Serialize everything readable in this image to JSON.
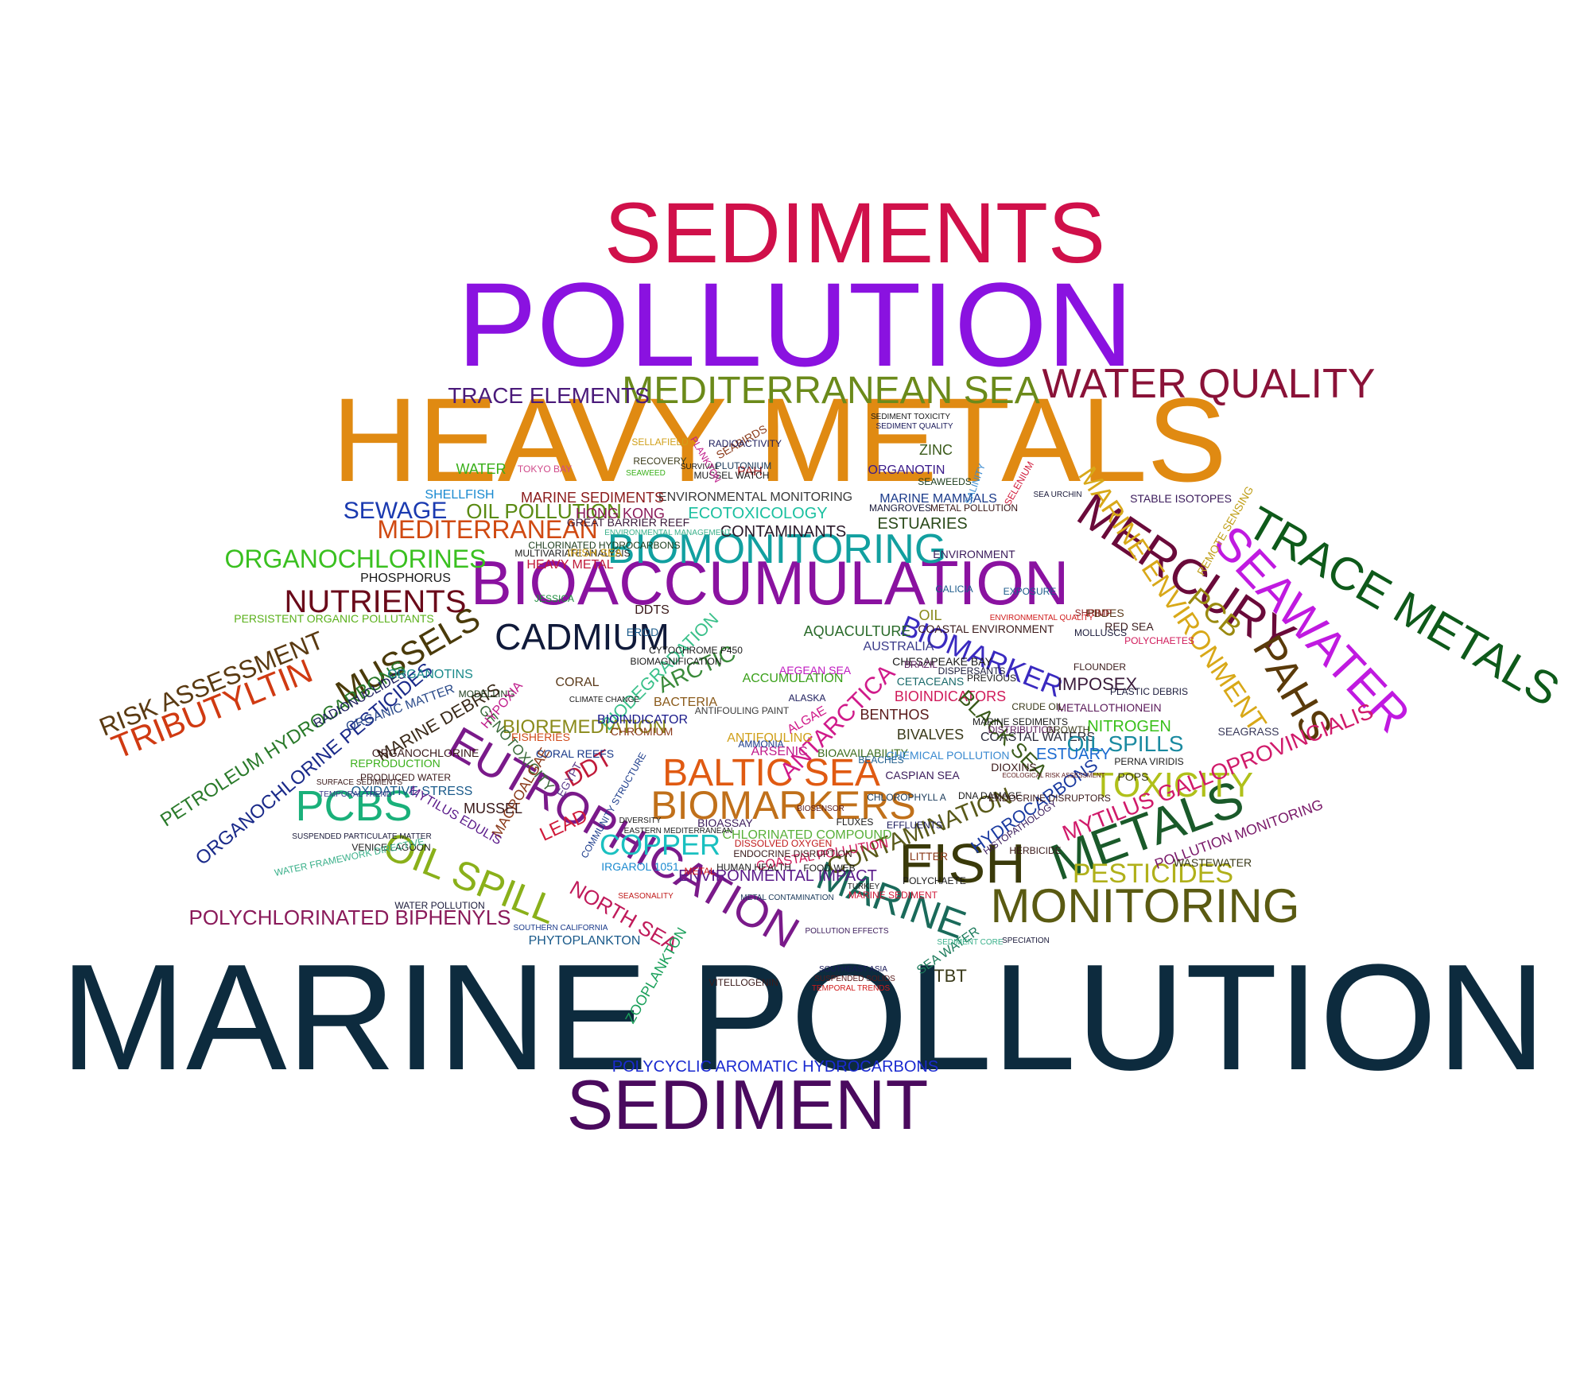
{
  "word_cloud": {
    "words": [
      {
        "text": "SEDIMENTS",
        "color": "#d0104a"
      },
      {
        "text": "POLLUTION",
        "color": "#8a12e0"
      },
      {
        "text": "HEAVY METALS",
        "color": "#e08a12"
      },
      {
        "text": "MARINE POLLUTION",
        "color": "#0d2b3e"
      },
      {
        "text": "SEDIMENT",
        "color": "#4a0a5e"
      },
      {
        "text": "MEDITERRANEAN SEA",
        "color": "#6b8a1a"
      },
      {
        "text": "WATER QUALITY",
        "color": "#8a1238"
      },
      {
        "text": "TRACE ELEMENTS",
        "color": "#4a1a7a"
      },
      {
        "text": "TRACE METALS",
        "color": "#0e5a1a"
      },
      {
        "text": "SEAWATER",
        "color": "#c01ae0"
      },
      {
        "text": "MERCURY",
        "color": "#6a0a3a"
      },
      {
        "text": "MARINE ENVIRONMENT",
        "color": "#d8a818"
      },
      {
        "text": "PAHS",
        "color": "#5a3a0a"
      },
      {
        "text": "PCB",
        "color": "#9a8a10"
      },
      {
        "text": "BIOACCUMULATION",
        "color": "#8a12a0"
      },
      {
        "text": "BIOMONITORING",
        "color": "#12a0a0"
      },
      {
        "text": "CADMIUM",
        "color": "#101a3a"
      },
      {
        "text": "MUSSELS",
        "color": "#4a3a0a"
      },
      {
        "text": "NUTRIENTS",
        "color": "#6a0a1a"
      },
      {
        "text": "ORGANOCHLORINES",
        "color": "#3ac020"
      },
      {
        "text": "MEDITERRANEAN",
        "color": "#d04a12"
      },
      {
        "text": "SEWAGE",
        "color": "#1a3ab0"
      },
      {
        "text": "OIL POLLUTION",
        "color": "#5a8a12"
      },
      {
        "text": "RISK ASSESSMENT",
        "color": "#5a3a12"
      },
      {
        "text": "TRIBUTYLTIN",
        "color": "#d03a12"
      },
      {
        "text": "PETROLEUM HYDROCARBONS",
        "color": "#2a7a2a"
      },
      {
        "text": "ORGANOCHLORINE PESTICIDES",
        "color": "#1a2a8a"
      },
      {
        "text": "PCBS",
        "color": "#1ab07a"
      },
      {
        "text": "EUTROPHICATION",
        "color": "#7a1a8a"
      },
      {
        "text": "OIL SPILL",
        "color": "#8ab01a"
      },
      {
        "text": "POLYCHLORINATED BIPHENYLS",
        "color": "#8a1a5a"
      },
      {
        "text": "BALTIC SEA",
        "color": "#e05a12"
      },
      {
        "text": "BIOMARKERS",
        "color": "#c0701a"
      },
      {
        "text": "COPPER",
        "color": "#1ac0c0"
      },
      {
        "text": "FISH",
        "color": "#3a3a0a"
      },
      {
        "text": "METALS",
        "color": "#1a5a2a"
      },
      {
        "text": "TOXICITY",
        "color": "#b0c01a"
      },
      {
        "text": "MONITORING",
        "color": "#5a5a12"
      },
      {
        "text": "MARINE",
        "color": "#1a6a5a"
      },
      {
        "text": "PESTICIDES",
        "color": "#b0b01a"
      },
      {
        "text": "MYTILUS GALLOPROVINCIALIS",
        "color": "#d01a6a"
      },
      {
        "text": "BIOMARKER",
        "color": "#3a2ac0"
      },
      {
        "text": "CONTAMINATION",
        "color": "#5a5a1a"
      },
      {
        "text": "ANTARCTICA",
        "color": "#d01a8a"
      },
      {
        "text": "ENVIRONMENTAL MONITORING",
        "color": "#3a3a3a"
      },
      {
        "text": "MARINE SEDIMENTS",
        "color": "#8a1a1a"
      },
      {
        "text": "HONG KONG",
        "color": "#8a1a5a"
      },
      {
        "text": "ECOTOXICOLOGY",
        "color": "#1ac0a0"
      },
      {
        "text": "CONTAMINANTS",
        "color": "#2a1a2a"
      },
      {
        "text": "ESTUARIES",
        "color": "#2a4a1a"
      },
      {
        "text": "SHELLFISH",
        "color": "#1a8ad0"
      },
      {
        "text": "WATER",
        "color": "#3ab01a"
      },
      {
        "text": "ZINC",
        "color": "#3a5a1a"
      },
      {
        "text": "ORGANOTIN",
        "color": "#3a1a8a"
      },
      {
        "text": "MARINE MAMMALS",
        "color": "#1a3a8a"
      },
      {
        "text": "STABLE ISOTOPES",
        "color": "#3a1a5a"
      },
      {
        "text": "AQUACULTURE",
        "color": "#2a6a2a"
      },
      {
        "text": "AUSTRALIA",
        "color": "#3a3a8a"
      },
      {
        "text": "IMPOSEX",
        "color": "#3a1a3a"
      },
      {
        "text": "METALLOTHIONEIN",
        "color": "#5a1a5a"
      },
      {
        "text": "BIOINDICATORS",
        "color": "#d01a5a"
      },
      {
        "text": "BENTHOS",
        "color": "#5a1a1a"
      },
      {
        "text": "BIVALVES",
        "color": "#3a3a1a"
      },
      {
        "text": "COASTAL WATERS",
        "color": "#2a2a3a"
      },
      {
        "text": "NITROGEN",
        "color": "#3ac01a"
      },
      {
        "text": "OIL SPILLS",
        "color": "#1a8aa0"
      },
      {
        "text": "ESTUARY",
        "color": "#1a6ad0"
      },
      {
        "text": "BLACK SEA",
        "color": "#3a5a1a"
      },
      {
        "text": "HYDROCARBONS",
        "color": "#1a3aa0"
      },
      {
        "text": "POLLUTION MONITORING",
        "color": "#7a1a6a"
      },
      {
        "text": "DDT",
        "color": "#c01a3a"
      },
      {
        "text": "LEAD",
        "color": "#d01a3a"
      },
      {
        "text": "BIODEGRADATION",
        "color": "#3ac08a"
      },
      {
        "text": "ARCTIC",
        "color": "#3a8a3a"
      },
      {
        "text": "BIOREMEDIATION",
        "color": "#8a8a1a"
      },
      {
        "text": "ENVIRONMENTAL IMPACT",
        "color": "#5a1a8a"
      },
      {
        "text": "NORTH SEA",
        "color": "#c01a5a"
      },
      {
        "text": "PHYTOPLANKTON",
        "color": "#1a5a8a"
      },
      {
        "text": "ZOOPLANKTON",
        "color": "#1aa05a"
      },
      {
        "text": "POLYCYCLIC AROMATIC HYDROCARBONS",
        "color": "#1a2ad0"
      },
      {
        "text": "TBT",
        "color": "#3a3a1a"
      },
      {
        "text": "SEA WATER",
        "color": "#1a7a5a"
      },
      {
        "text": "GENOTOXICITY",
        "color": "#3a6a3a"
      },
      {
        "text": "MACROALGAE",
        "color": "#8a3a1a"
      },
      {
        "text": "MUSSEL",
        "color": "#3a1a1a"
      },
      {
        "text": "OXIDATIVE STRESS",
        "color": "#1a5a8a"
      },
      {
        "text": "MYTILUS EDULIS",
        "color": "#5a1a8a"
      },
      {
        "text": "MARINE DEBRIS",
        "color": "#3a2a1a"
      },
      {
        "text": "RADIONUCLIDES",
        "color": "#1a1a5a"
      },
      {
        "text": "ORGANOTINS",
        "color": "#1a8a8a"
      },
      {
        "text": "ORGANIC MATTER",
        "color": "#2a4a8a"
      },
      {
        "text": "PHOSPHORUS",
        "color": "#1a1a1a"
      },
      {
        "text": "PERSISTENT ORGANIC POLLUTANTS",
        "color": "#5ab01a"
      },
      {
        "text": "HEAVY METAL",
        "color": "#c01a3a"
      },
      {
        "text": "GREAT BARRIER REEF",
        "color": "#3a1a3a"
      },
      {
        "text": "SEABIRDS",
        "color": "#8a3a1a"
      },
      {
        "text": "PAH",
        "color": "#a01a1a"
      },
      {
        "text": "RED SEA",
        "color": "#3a1a1a"
      },
      {
        "text": "PBDES",
        "color": "#5a3a1a"
      },
      {
        "text": "CRUDE OIL",
        "color": "#3a3a1a"
      },
      {
        "text": "POPS",
        "color": "#3a3a1a"
      },
      {
        "text": "SEAGRASS",
        "color": "#3a3a5a"
      },
      {
        "text": "WASTEWATER",
        "color": "#3a3a1a"
      },
      {
        "text": "CHLORINATED COMPOUND",
        "color": "#5ab03a"
      },
      {
        "text": "COASTAL POLLUTION",
        "color": "#d01a5a"
      },
      {
        "text": "IRGAROL 1051",
        "color": "#1a8ad0"
      },
      {
        "text": "CORAL REEFS",
        "color": "#1a3a8a"
      },
      {
        "text": "BACTERIA",
        "color": "#8a5a1a"
      },
      {
        "text": "BIOINDICATOR",
        "color": "#1a1a8a"
      },
      {
        "text": "ACCUMULATION",
        "color": "#3aa01a"
      },
      {
        "text": "ARSENIC",
        "color": "#c01a8a"
      },
      {
        "text": "ANTIFOULING",
        "color": "#d0a01a"
      },
      {
        "text": "BIOAVAILABILITY",
        "color": "#3a6a1a"
      },
      {
        "text": "CHEMICAL POLLUTION",
        "color": "#3a8ad0"
      },
      {
        "text": "CETACEANS",
        "color": "#1a6a6a"
      },
      {
        "text": "DIOXINS",
        "color": "#3a1a1a"
      },
      {
        "text": "MODELLING",
        "color": "#1a3a1a"
      },
      {
        "text": "ORGANOCHLORINE",
        "color": "#3a1a1a"
      },
      {
        "text": "REPRODUCTION",
        "color": "#3ab01a"
      },
      {
        "text": "PRODUCED WATER",
        "color": "#3a1a1a"
      },
      {
        "text": "VENICE LAGOON",
        "color": "#1a1a1a"
      },
      {
        "text": "WATER POLLUTION",
        "color": "#1a1a3a"
      },
      {
        "text": "WATER FRAMEWORK DIRECTIVE",
        "color": "#3ab08a"
      },
      {
        "text": "SUSPENDED PARTICULATE MATTER",
        "color": "#1a1a3a"
      },
      {
        "text": "SOUTHERN CALIFORNIA",
        "color": "#1a3a8a"
      },
      {
        "text": "VITELLOGENIN",
        "color": "#3a1a1a"
      },
      {
        "text": "SOUTHEAST ASIA",
        "color": "#1a1a5a"
      },
      {
        "text": "SUSPENDED SOLIDS",
        "color": "#5a1a1a"
      },
      {
        "text": "TEMPORAL TRENDS",
        "color": "#d01a1a"
      },
      {
        "text": "SPECIATION",
        "color": "#1a1a3a"
      },
      {
        "text": "POLLUTION EFFECTS",
        "color": "#3a1a5a"
      },
      {
        "text": "MARINE SEDIMENT",
        "color": "#d01a3a"
      },
      {
        "text": "METAL CONTAMINATION",
        "color": "#1a3a5a"
      },
      {
        "text": "FOOD WEB",
        "color": "#1a1a1a"
      },
      {
        "text": "HERBICIDE",
        "color": "#3a1a1a"
      },
      {
        "text": "DISTRIBUTION",
        "color": "#5a1a5a"
      },
      {
        "text": "GROWTH",
        "color": "#3a3a1a"
      },
      {
        "text": "HISTOPATHOLOGY",
        "color": "#3a1a5a"
      },
      {
        "text": "PERNA VIRIDIS",
        "color": "#1a1a1a"
      },
      {
        "text": "CYTOCHROME P450",
        "color": "#1a1a1a"
      },
      {
        "text": "CORAL",
        "color": "#5a3a1a"
      },
      {
        "text": "ECOLOGICAL RISK ASSESSMENT",
        "color": "#5a1a1a"
      },
      {
        "text": "DNA DAMAGE",
        "color": "#1a1a1a"
      },
      {
        "text": "CASPIAN SEA",
        "color": "#3a1a5a"
      },
      {
        "text": "AEGEAN SEA",
        "color": "#c01ac0"
      },
      {
        "text": "AMMONIA",
        "color": "#1a3a8a"
      },
      {
        "text": "ALASKA",
        "color": "#1a1a5a"
      },
      {
        "text": "ALGAE",
        "color": "#d01a8a"
      },
      {
        "text": "ANTIFOULING PAINT",
        "color": "#3a3a3a"
      },
      {
        "text": "BIOASSAY",
        "color": "#3a1a5a"
      },
      {
        "text": "BIOSENSOR",
        "color": "#5a1a1a"
      },
      {
        "text": "GALICIA",
        "color": "#1a5a8a"
      },
      {
        "text": "HYPOXIA",
        "color": "#c01a8a"
      },
      {
        "text": "FISHERIES",
        "color": "#d04a1a"
      },
      {
        "text": "EGYPT",
        "color": "#5a3a8a"
      },
      {
        "text": "CHROMIUM",
        "color": "#8a3a1a"
      },
      {
        "text": "EROD",
        "color": "#1a5a8a"
      },
      {
        "text": "DDTS",
        "color": "#3a1a1a"
      },
      {
        "text": "JESSICA",
        "color": "#1a8a3a"
      },
      {
        "text": "PLUTONIUM",
        "color": "#1a3a5a"
      },
      {
        "text": "RECOVERY",
        "color": "#3a3a1a"
      },
      {
        "text": "SEAWEEDS",
        "color": "#1a3a1a"
      },
      {
        "text": "SELENIUM",
        "color": "#d01a3a"
      },
      {
        "text": "SALINITY",
        "color": "#3a8ad0"
      },
      {
        "text": "SEA URCHIN",
        "color": "#1a1a3a"
      },
      {
        "text": "MANGROVES",
        "color": "#1a1a3a"
      },
      {
        "text": "METAL POLLUTION",
        "color": "#3a1a1a"
      },
      {
        "text": "SEDIMENT TOXICITY",
        "color": "#1a1a1a"
      },
      {
        "text": "SEDIMENT QUALITY",
        "color": "#1a1a5a"
      },
      {
        "text": "ENVIRONMENT",
        "color": "#3a1a5a"
      },
      {
        "text": "PLASTIC DEBRIS",
        "color": "#1a1a3a"
      },
      {
        "text": "MOLLUSCS",
        "color": "#1a1a3a"
      },
      {
        "text": "FLOUNDER",
        "color": "#3a1a1a"
      },
      {
        "text": "MARINE SEDIMENTS",
        "color": "#1a1a1a"
      },
      {
        "text": "POLYCHAETES",
        "color": "#d01a5a"
      },
      {
        "text": "REMOTE SENSING",
        "color": "#c0a01a"
      },
      {
        "text": "SHRIMP",
        "color": "#8a1a1a"
      },
      {
        "text": "OIL",
        "color": "#8a8a1a"
      },
      {
        "text": "PREVIOUS",
        "color": "#1a1a1a"
      },
      {
        "text": "COASTAL ENVIRONMENT",
        "color": "#3a1a1a"
      },
      {
        "text": "EXPOSURE",
        "color": "#1a5a8a"
      },
      {
        "text": "ENVIRONMENTAL QUALITY",
        "color": "#d01a1a"
      },
      {
        "text": "DISPERSANTS",
        "color": "#1a1a3a"
      },
      {
        "text": "SURFACE SEDIMENTS",
        "color": "#3a1a1a"
      },
      {
        "text": "TEMPORAL TREND",
        "color": "#3a3a8a"
      },
      {
        "text": "BIOMAGNIFICATION",
        "color": "#1a1a1a"
      },
      {
        "text": "CHLORINATED HYDROCARBONS",
        "color": "#1a3a1a"
      },
      {
        "text": "MULTIVARIATE ANALYSIS",
        "color": "#1a1a1a"
      },
      {
        "text": "IRISH SEA",
        "color": "#d0a01a"
      },
      {
        "text": "ENVIRONMENTAL MANAGEMENT",
        "color": "#3ab08a"
      },
      {
        "text": "SELLAFIELD",
        "color": "#d0a01a"
      },
      {
        "text": "SEAWEED",
        "color": "#3ab01a"
      },
      {
        "text": "TOKYO BAY",
        "color": "#d04a8a"
      },
      {
        "text": "MUSSEL WATCH",
        "color": "#1a1a1a"
      },
      {
        "text": "SURVIVAL",
        "color": "#1a1a1a"
      },
      {
        "text": "RADIOACTIVITY",
        "color": "#1a1a5a"
      },
      {
        "text": "PLANKTON",
        "color": "#c01a8a"
      },
      {
        "text": "CHESAPEAKE BAY",
        "color": "#1a1a1a"
      },
      {
        "text": "BRAZIL",
        "color": "#5a1a5a"
      },
      {
        "text": "ENDOCRINE DISRUPTION",
        "color": "#3a1a1a"
      },
      {
        "text": "ENDOCRINE DISRUPTORS",
        "color": "#3a1a1a"
      },
      {
        "text": "HUMAN HEALTH",
        "color": "#1a1a1a"
      },
      {
        "text": "DISSOLVED OXYGEN",
        "color": "#c01a1a"
      },
      {
        "text": "EASTERN MEDITERRANEAN",
        "color": "#1a1a1a"
      },
      {
        "text": "COMMUNITY STRUCTURE",
        "color": "#1a3a8a"
      },
      {
        "text": "CLIMATE CHANGE",
        "color": "#1a1a1a"
      },
      {
        "text": "DIVERSITY",
        "color": "#1a1a1a"
      },
      {
        "text": "SEASONALITY",
        "color": "#c01a1a"
      },
      {
        "text": "METAL",
        "color": "#d01a1a"
      },
      {
        "text": "TURKEY",
        "color": "#1a1a1a"
      },
      {
        "text": "POLYCHAETE",
        "color": "#1a1a1a"
      },
      {
        "text": "LITTER",
        "color": "#8a3a1a"
      },
      {
        "text": "FLUXES",
        "color": "#1a1a1a"
      },
      {
        "text": "SEDIMENT CORE",
        "color": "#3ab08a"
      },
      {
        "text": "BEACHES",
        "color": "#1a5a8a"
      },
      {
        "text": "EFFLUENTS",
        "color": "#1a1a5a"
      },
      {
        "text": "CHLOROPHYLL A",
        "color": "#1a3a5a"
      }
    ]
  }
}
